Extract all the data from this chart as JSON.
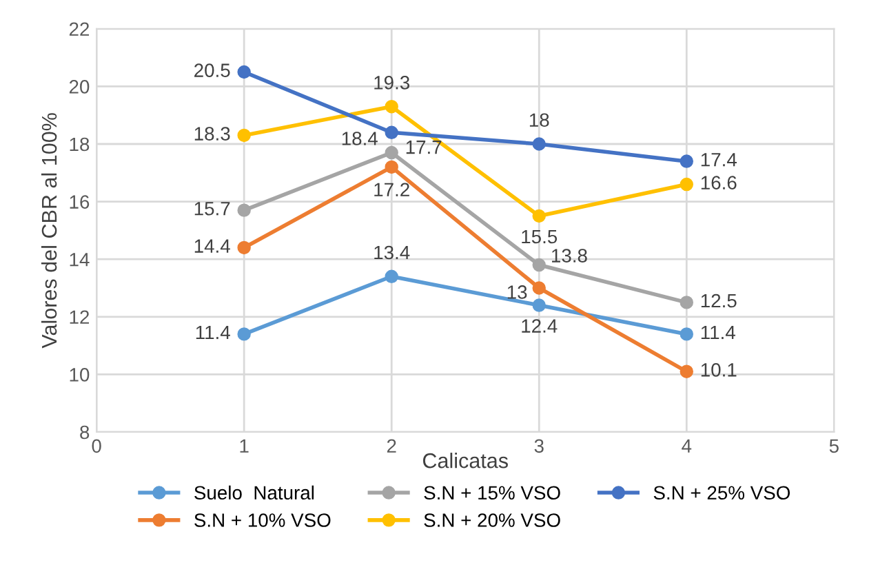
{
  "chart_data": {
    "type": "line",
    "xlabel": "Calicatas",
    "ylabel": "Valores del CBR al 100%",
    "x": [
      1,
      2,
      3,
      4
    ],
    "series": [
      {
        "name": "Suelo  Natural",
        "color": "#5b9bd5",
        "values": [
          11.4,
          13.4,
          12.4,
          11.4
        ]
      },
      {
        "name": "S.N + 10% VSO",
        "color": "#ed7d31",
        "values": [
          14.4,
          17.2,
          13,
          10.1
        ]
      },
      {
        "name": "S.N + 15% VSO",
        "color": "#a5a5a5",
        "values": [
          15.7,
          17.7,
          13.8,
          12.5
        ]
      },
      {
        "name": "S.N + 20% VSO",
        "color": "#ffc000",
        "values": [
          18.3,
          19.3,
          15.5,
          16.6
        ]
      },
      {
        "name": "S.N + 25% VSO",
        "color": "#4472c4",
        "values": [
          20.5,
          18.4,
          18,
          17.4
        ]
      }
    ],
    "xlim": [
      0,
      5
    ],
    "xticks": [
      0,
      1,
      2,
      3,
      4,
      5
    ],
    "ylim": [
      8,
      22
    ],
    "yticks": [
      8,
      10,
      12,
      14,
      16,
      18,
      20,
      22
    ],
    "grid": true,
    "legend": "bottom",
    "marker": "circle",
    "line_style": "solid",
    "data_labels": true
  }
}
